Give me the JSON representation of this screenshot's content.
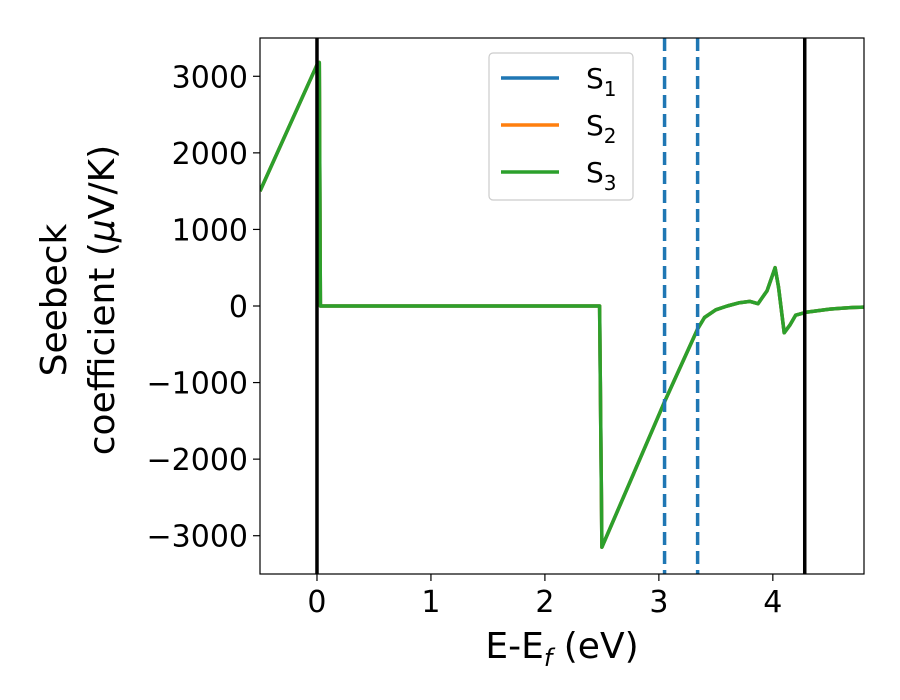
{
  "chart_data": {
    "type": "line",
    "xlabel": {
      "base": "E-E",
      "sub": "f",
      "suffix": " (eV)"
    },
    "ylabel": {
      "line1": "Seebeck",
      "line2_text": "coefficient  (",
      "mu": "μ",
      "line2_unit": "V/K)"
    },
    "xlim": [
      -0.5,
      4.8
    ],
    "ylim": [
      -3500,
      3500
    ],
    "xticks": [
      0,
      1,
      2,
      3,
      4
    ],
    "xtick_labels": [
      "0",
      "1",
      "2",
      "3",
      "4"
    ],
    "yticks": [
      3000,
      2000,
      1000,
      0,
      -1000,
      -2000,
      -3000
    ],
    "ytick_labels": [
      "3000",
      "2000",
      "1000",
      "0",
      "−1000",
      "−2000",
      "−3000"
    ],
    "grid": false,
    "legend_position": "upper-center",
    "vlines": [
      {
        "x": 0.0,
        "style": "solid",
        "color": "#000000"
      },
      {
        "x": 4.28,
        "style": "solid",
        "color": "#000000"
      },
      {
        "x": 3.05,
        "style": "dashed",
        "color": "#1f77b4"
      },
      {
        "x": 3.34,
        "style": "dashed",
        "color": "#1f77b4"
      }
    ],
    "series": [
      {
        "name": {
          "base": "S",
          "sub": "1"
        },
        "color": "#1f77b4",
        "x": [
          -0.5,
          0.0,
          0.02,
          0.03,
          2.47,
          2.48,
          2.5,
          3.05,
          3.34,
          3.4,
          3.5,
          3.6,
          3.7,
          3.8,
          3.87,
          3.95,
          4.02,
          4.05,
          4.1,
          4.15,
          4.2,
          4.3,
          4.4,
          4.5,
          4.6,
          4.7,
          4.8
        ],
        "y": [
          1500,
          3150,
          3180,
          0,
          0,
          0,
          -3150,
          -1250,
          -300,
          -150,
          -50,
          0,
          40,
          60,
          30,
          200,
          500,
          250,
          -350,
          -250,
          -120,
          -80,
          -60,
          -40,
          -30,
          -20,
          -15
        ]
      },
      {
        "name": {
          "base": "S",
          "sub": "2"
        },
        "color": "#ff7f0e",
        "x": [
          -0.5,
          0.0,
          0.02,
          0.03,
          2.47,
          2.48,
          2.5,
          3.05,
          3.34,
          3.4,
          3.5,
          3.6,
          3.7,
          3.8,
          3.87,
          3.95,
          4.02,
          4.05,
          4.1,
          4.15,
          4.2,
          4.3,
          4.4,
          4.5,
          4.6,
          4.7,
          4.8
        ],
        "y": [
          1500,
          3150,
          3180,
          0,
          0,
          0,
          -3150,
          -1250,
          -300,
          -150,
          -50,
          0,
          40,
          60,
          30,
          200,
          500,
          250,
          -350,
          -250,
          -120,
          -80,
          -60,
          -40,
          -30,
          -20,
          -15
        ]
      },
      {
        "name": {
          "base": "S",
          "sub": "3"
        },
        "color": "#2ca02c",
        "x": [
          -0.5,
          0.0,
          0.02,
          0.03,
          2.47,
          2.48,
          2.5,
          3.05,
          3.34,
          3.4,
          3.5,
          3.6,
          3.7,
          3.8,
          3.87,
          3.95,
          4.02,
          4.05,
          4.1,
          4.15,
          4.2,
          4.3,
          4.4,
          4.5,
          4.6,
          4.7,
          4.8
        ],
        "y": [
          1500,
          3150,
          3180,
          0,
          0,
          0,
          -3150,
          -1250,
          -300,
          -150,
          -50,
          0,
          40,
          60,
          30,
          200,
          500,
          250,
          -350,
          -250,
          -120,
          -80,
          -60,
          -40,
          -30,
          -20,
          -15
        ]
      }
    ]
  }
}
